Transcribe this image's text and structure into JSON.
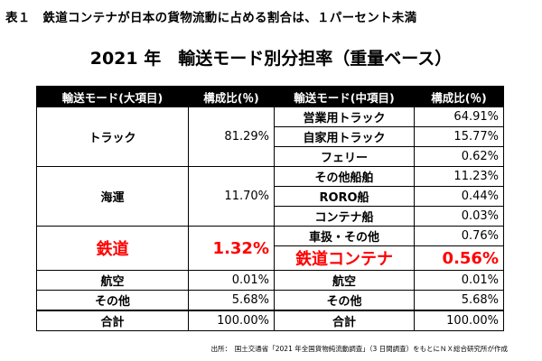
{
  "caption": "表１　鉄道コンテナが日本の貨物流動に占める割合は、１パーセント未満",
  "subtitle": "2021 年　輸送モード別分担率（重量ベース）",
  "table": {
    "headers": [
      "輸送モード(大項目)",
      "構成比(％)",
      "輸送モード(中項目)",
      "構成比(％)"
    ],
    "groups": {
      "truck": {
        "label": "トラック",
        "value": "81.29%",
        "subs": [
          {
            "label": "営業用トラック",
            "value": "64.91%"
          },
          {
            "label": "自家用トラック",
            "value": "15.77%"
          },
          {
            "label": "フェリー",
            "value": "0.62%"
          }
        ]
      },
      "kaiun": {
        "label": "海運",
        "value": "11.70%",
        "subs": [
          {
            "label": "その他船舶",
            "value": "11.23%"
          },
          {
            "label": "RORO船",
            "value": "0.44%"
          },
          {
            "label": "コンテナ船",
            "value": "0.03%"
          }
        ]
      },
      "rail": {
        "label": "鉄道",
        "value": "1.32%",
        "subs": [
          {
            "label": "車扱・その他",
            "value": "0.76%"
          },
          {
            "label": "鉄道コンテナ",
            "value": "0.56%"
          }
        ]
      },
      "air": {
        "label": "航空",
        "value": "0.01%",
        "sub_label": "航空",
        "sub_value": "0.01%"
      },
      "other": {
        "label": "その他",
        "value": "5.68%",
        "sub_label": "その他",
        "sub_value": "5.68%"
      },
      "total": {
        "label": "合計",
        "value": "100.00%",
        "sub_label": "合計",
        "sub_value": "100.00%"
      }
    }
  },
  "source": "出所：　国土交通省「2021 年全国貨物純流動調査」（3 日間調査）をもとにＮＸ総合研究所が作成",
  "colors": {
    "highlight": "#ff0000",
    "header_bg": "#000000",
    "header_text": "#ffffff"
  }
}
